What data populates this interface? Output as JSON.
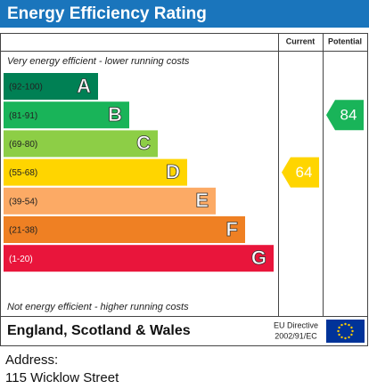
{
  "header": {
    "title": "Energy Efficiency Rating"
  },
  "columns": [
    "Current",
    "Potential"
  ],
  "top_note": "Very energy efficient - lower running costs",
  "bands": [
    {
      "range": "(92-100)",
      "letter": "A",
      "color": "#008054"
    },
    {
      "range": "(81-91)",
      "letter": "B",
      "color": "#19b459"
    },
    {
      "range": "(69-80)",
      "letter": "C",
      "color": "#8dce46"
    },
    {
      "range": "(55-68)",
      "letter": "D",
      "color": "#ffd500"
    },
    {
      "range": "(39-54)",
      "letter": "E",
      "color": "#fcaa65"
    },
    {
      "range": "(21-38)",
      "letter": "F",
      "color": "#ef8023"
    },
    {
      "range": "(1-20)",
      "letter": "G",
      "color": "#e9153b"
    }
  ],
  "bottom_note": "Not energy efficient - higher running costs",
  "ratings": [
    {
      "value": 64
    },
    {
      "value": 84
    }
  ],
  "footer": {
    "region": "England, Scotland & Wales",
    "directive": [
      "EU Directive",
      "2002/91/EC"
    ]
  },
  "address": {
    "label": "Address:",
    "line": "115 Wicklow Street"
  }
}
